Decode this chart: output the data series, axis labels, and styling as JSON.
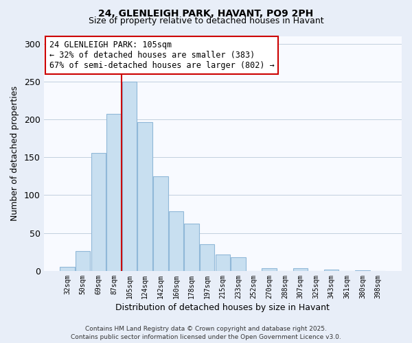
{
  "title": "24, GLENLEIGH PARK, HAVANT, PO9 2PH",
  "subtitle": "Size of property relative to detached houses in Havant",
  "xlabel": "Distribution of detached houses by size in Havant",
  "ylabel": "Number of detached properties",
  "bar_color": "#c8dff0",
  "bar_edge_color": "#90b8d8",
  "highlight_color": "#cc0000",
  "annotation_line1": "24 GLENLEIGH PARK: 105sqm",
  "annotation_line2": "← 32% of detached houses are smaller (383)",
  "annotation_line3": "67% of semi-detached houses are larger (802) →",
  "categories": [
    "32sqm",
    "50sqm",
    "69sqm",
    "87sqm",
    "105sqm",
    "124sqm",
    "142sqm",
    "160sqm",
    "178sqm",
    "197sqm",
    "215sqm",
    "233sqm",
    "252sqm",
    "270sqm",
    "288sqm",
    "307sqm",
    "325sqm",
    "343sqm",
    "361sqm",
    "380sqm",
    "398sqm"
  ],
  "values": [
    5,
    26,
    156,
    207,
    250,
    196,
    125,
    79,
    62,
    35,
    22,
    18,
    0,
    4,
    0,
    4,
    0,
    2,
    0,
    1,
    0
  ],
  "ylim": [
    0,
    310
  ],
  "yticks": [
    0,
    50,
    100,
    150,
    200,
    250,
    300
  ],
  "footer1": "Contains HM Land Registry data © Crown copyright and database right 2025.",
  "footer2": "Contains public sector information licensed under the Open Government Licence v3.0.",
  "bg_color": "#e8eef8",
  "plot_bg_color": "#f8faff"
}
